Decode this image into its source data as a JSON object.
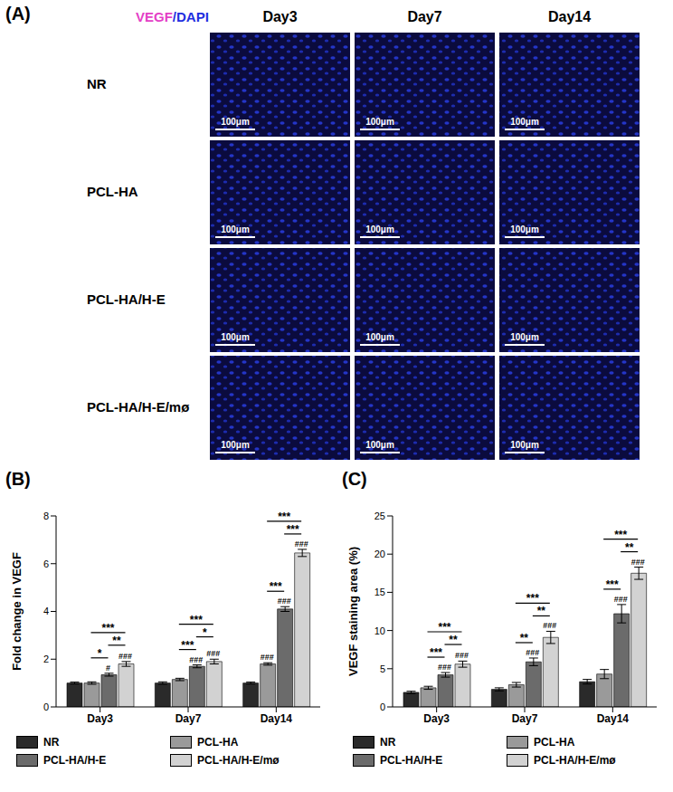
{
  "panel_a": {
    "panel_label": "(A)",
    "stain": [
      {
        "text": "VEGF",
        "color": "#e43fc6"
      },
      {
        "text": "/DAPI",
        "color": "#1f2fe0"
      }
    ],
    "columns": [
      "Day3",
      "Day7",
      "Day14"
    ],
    "rows": [
      "NR",
      "PCL-HA",
      "PCL-HA/H-E",
      "PCL-HA/H-E/mø"
    ],
    "scale_bar": "100μm"
  },
  "chart_data": [
    {
      "type": "bar",
      "panel_label": "(B)",
      "ylabel": "Fold change in VEGF",
      "categories": [
        "Day3",
        "Day7",
        "Day14"
      ],
      "series": [
        {
          "name": "NR",
          "color": "#2a2a2a",
          "values": [
            1.0,
            1.0,
            1.0
          ],
          "errors": [
            0.04,
            0.05,
            0.04
          ],
          "hash_labels": [
            null,
            null,
            null
          ]
        },
        {
          "name": "PCL-HA",
          "color": "#9a9a9a",
          "values": [
            1.0,
            1.15,
            1.8
          ],
          "errors": [
            0.05,
            0.05,
            0.05
          ],
          "hash_labels": [
            null,
            null,
            "###"
          ]
        },
        {
          "name": "PCL-HA/H-E",
          "color": "#6b6b6b",
          "values": [
            1.35,
            1.7,
            4.1
          ],
          "errors": [
            0.06,
            0.06,
            0.1
          ],
          "hash_labels": [
            "#",
            "###",
            "###"
          ]
        },
        {
          "name": "PCL-HA/H-E/mø",
          "color": "#d2d2d2",
          "values": [
            1.8,
            1.9,
            6.45
          ],
          "errors": [
            0.1,
            0.1,
            0.15
          ],
          "hash_labels": [
            "###",
            "###",
            "###"
          ]
        }
      ],
      "comparisons": [
        {
          "category": "Day3",
          "pair": [
            "PCL-HA",
            "PCL-HA/H-E"
          ],
          "label": "*"
        },
        {
          "category": "Day3",
          "pair": [
            "PCL-HA",
            "PCL-HA/H-E/mø"
          ],
          "label": "***"
        },
        {
          "category": "Day3",
          "pair": [
            "PCL-HA/H-E",
            "PCL-HA/H-E/mø"
          ],
          "label": "**"
        },
        {
          "category": "Day7",
          "pair": [
            "PCL-HA",
            "PCL-HA/H-E"
          ],
          "label": "***"
        },
        {
          "category": "Day7",
          "pair": [
            "PCL-HA",
            "PCL-HA/H-E/mø"
          ],
          "label": "***"
        },
        {
          "category": "Day7",
          "pair": [
            "PCL-HA/H-E",
            "PCL-HA/H-E/mø"
          ],
          "label": "*"
        },
        {
          "category": "Day14",
          "pair": [
            "PCL-HA",
            "PCL-HA/H-E"
          ],
          "label": "***"
        },
        {
          "category": "Day14",
          "pair": [
            "PCL-HA",
            "PCL-HA/H-E/mø"
          ],
          "label": "***"
        },
        {
          "category": "Day14",
          "pair": [
            "PCL-HA/H-E",
            "PCL-HA/H-E/mø"
          ],
          "label": "***"
        }
      ],
      "ylim": [
        0,
        8
      ],
      "yticks": [
        0,
        2,
        4,
        6,
        8
      ],
      "legend": "bottom"
    },
    {
      "type": "bar",
      "panel_label": "(C)",
      "ylabel": "VEGF staining area (%)",
      "categories": [
        "Day3",
        "Day7",
        "Day14"
      ],
      "series": [
        {
          "name": "NR",
          "color": "#2a2a2a",
          "values": [
            1.9,
            2.3,
            3.3
          ],
          "errors": [
            0.15,
            0.2,
            0.3
          ],
          "hash_labels": [
            null,
            null,
            null
          ]
        },
        {
          "name": "PCL-HA",
          "color": "#9a9a9a",
          "values": [
            2.5,
            2.9,
            4.3
          ],
          "errors": [
            0.2,
            0.3,
            0.6
          ],
          "hash_labels": [
            null,
            null,
            null
          ]
        },
        {
          "name": "PCL-HA/H-E",
          "color": "#6b6b6b",
          "values": [
            4.2,
            5.9,
            12.2
          ],
          "errors": [
            0.3,
            0.5,
            1.2
          ],
          "hash_labels": [
            "###",
            "###",
            "###"
          ]
        },
        {
          "name": "PCL-HA/H-E/mø",
          "color": "#d2d2d2",
          "values": [
            5.6,
            9.1,
            17.5
          ],
          "errors": [
            0.4,
            0.8,
            0.8
          ],
          "hash_labels": [
            "###",
            "###",
            "###"
          ]
        }
      ],
      "comparisons": [
        {
          "category": "Day3",
          "pair": [
            "PCL-HA",
            "PCL-HA/H-E"
          ],
          "label": "***"
        },
        {
          "category": "Day3",
          "pair": [
            "PCL-HA",
            "PCL-HA/H-E/mø"
          ],
          "label": "***"
        },
        {
          "category": "Day3",
          "pair": [
            "PCL-HA/H-E",
            "PCL-HA/H-E/mø"
          ],
          "label": "**"
        },
        {
          "category": "Day7",
          "pair": [
            "PCL-HA",
            "PCL-HA/H-E"
          ],
          "label": "**"
        },
        {
          "category": "Day7",
          "pair": [
            "PCL-HA",
            "PCL-HA/H-E/mø"
          ],
          "label": "***"
        },
        {
          "category": "Day7",
          "pair": [
            "PCL-HA/H-E",
            "PCL-HA/H-E/mø"
          ],
          "label": "**"
        },
        {
          "category": "Day14",
          "pair": [
            "PCL-HA",
            "PCL-HA/H-E"
          ],
          "label": "***"
        },
        {
          "category": "Day14",
          "pair": [
            "PCL-HA",
            "PCL-HA/H-E/mø"
          ],
          "label": "***"
        },
        {
          "category": "Day14",
          "pair": [
            "PCL-HA/H-E",
            "PCL-HA/H-E/mø"
          ],
          "label": "**"
        }
      ],
      "ylim": [
        0,
        25
      ],
      "yticks": [
        0,
        5,
        10,
        15,
        20,
        25
      ],
      "legend": "bottom"
    }
  ]
}
